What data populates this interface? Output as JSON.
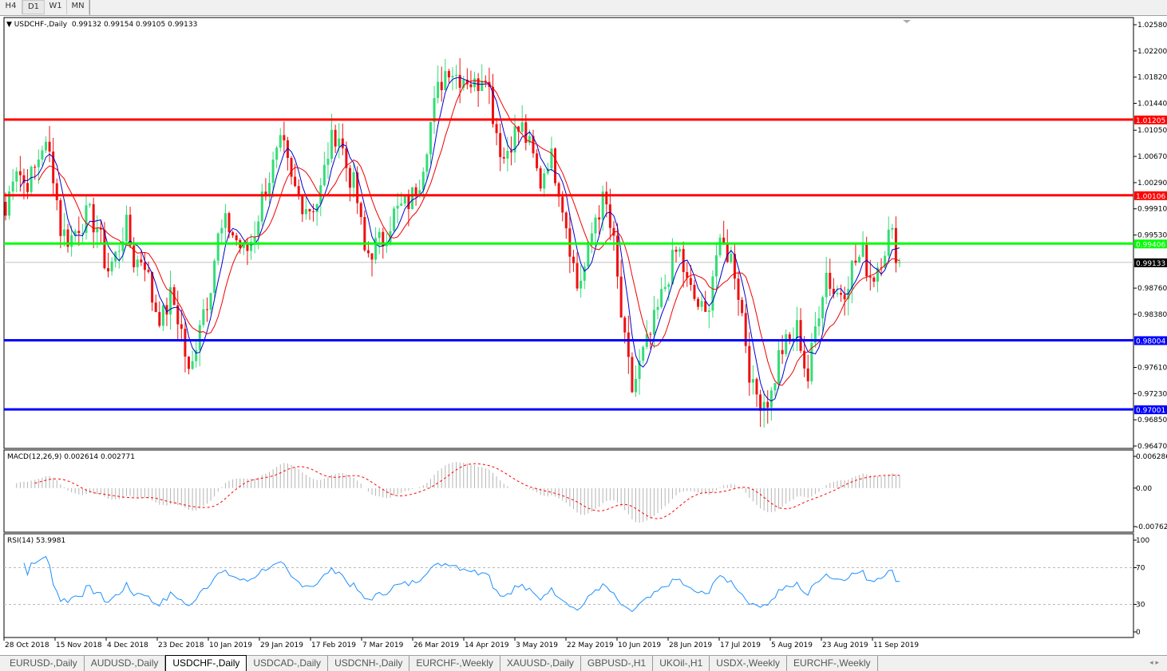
{
  "timeframes": [
    {
      "label": "H4"
    },
    {
      "label": "D1",
      "selected": true
    },
    {
      "label": "W1"
    },
    {
      "label": "MN"
    }
  ],
  "main": {
    "title": "USDCHF-,Daily",
    "ohlc": "0.99132 0.99154 0.99105 0.99133"
  },
  "macd": {
    "label": "MACD(12,26,9) 0.002614 0.002771",
    "axis": [
      "0.006286",
      "0.00",
      "-0.00762"
    ]
  },
  "rsi": {
    "label": "RSI(14) 53.9981",
    "axis": [
      "100",
      "70",
      "30",
      "0"
    ]
  },
  "tabs": [
    {
      "label": "EURUSD-,Daily"
    },
    {
      "label": "AUDUSD-,Daily"
    },
    {
      "label": "USDCHF-,Daily",
      "active": true
    },
    {
      "label": "USDCAD-,Daily"
    },
    {
      "label": "USDCNH-,Daily"
    },
    {
      "label": "EURCHF-,Weekly"
    },
    {
      "label": "XAUUSD-,Daily"
    },
    {
      "label": "GBPUSD-,H1"
    },
    {
      "label": "UKOil-,H1"
    },
    {
      "label": "USDX-,Weekly"
    },
    {
      "label": "EURCHF-,Weekly"
    }
  ],
  "tab_nav": "◂ ▸",
  "chart_data": {
    "type": "candlestick",
    "symbol": "USDCHF-,Daily",
    "ylim": [
      0.9647,
      1.0258
    ],
    "y_ticks": [
      "1.02580",
      "1.02200",
      "1.01820",
      "1.01440",
      "1.01050",
      "1.00670",
      "1.00290",
      "0.99910",
      "0.99530",
      "0.98760",
      "0.98380",
      "0.97610",
      "0.97230",
      "0.96850",
      "0.96470"
    ],
    "x_ticks": [
      "28 Oct 2018",
      "15 Nov 2018",
      "4 Dec 2018",
      "23 Dec 2018",
      "10 Jan 2019",
      "29 Jan 2019",
      "17 Feb 2019",
      "7 Mar 2019",
      "26 Mar 2019",
      "14 Apr 2019",
      "3 May 2019",
      "22 May 2019",
      "10 Jun 2019",
      "28 Jun 2019",
      "17 Jul 2019",
      "5 Aug 2019",
      "23 Aug 2019",
      "11 Sep 2019"
    ],
    "approx_closes": [
      0.99815,
      1.00625,
      1.00278,
      1.00393,
      1.00856,
      1.00625,
      0.99583,
      0.99468,
      0.99699,
      0.99815,
      0.99641,
      0.99005,
      0.99236,
      0.99699,
      0.9912,
      0.99236,
      0.98542,
      0.98311,
      0.98658,
      0.98195,
      0.97385,
      0.98311,
      0.98658,
      0.99468,
      0.99699,
      0.99468,
      0.99236,
      0.99583,
      1.00162,
      1.00509,
      1.00856,
      1.00278,
      1.00046,
      0.9993,
      1.00046,
      1.0074,
      1.01088,
      1.00509,
      1.00162,
      0.99236,
      0.99352,
      0.99468,
      0.99815,
      0.9993,
      1.00046,
      1.00393,
      1.01088,
      1.01666,
      1.02013,
      1.0184,
      1.0184,
      1.01666,
      1.02013,
      1.01203,
      1.00625,
      1.00972,
      1.01088,
      1.00741,
      1.00278,
      1.0074,
      1.00278,
      0.99583,
      0.98773,
      0.9912,
      0.99815,
      1.00046,
      0.99352,
      0.98079,
      0.97269,
      0.97732,
      0.98079,
      0.98542,
      0.99005,
      0.99352,
      0.98773,
      0.98542,
      0.98311,
      0.99236,
      0.99352,
      0.9912,
      0.98311,
      0.97269,
      0.97154,
      0.97154,
      0.97848,
      0.97964,
      0.98195,
      0.97385,
      0.98311,
      0.99005,
      0.98658,
      0.98773,
      0.9912,
      0.99236,
      0.98889,
      0.99236,
      0.99583,
      0.99133
    ],
    "levels": [
      {
        "value": 1.01205,
        "label": "1.01205",
        "color": "#ff0000"
      },
      {
        "value": 1.00106,
        "label": "1.00106",
        "color": "#ff0000"
      },
      {
        "value": 0.99406,
        "label": "0.99406",
        "color": "#00ff00"
      },
      {
        "value": 0.98004,
        "label": "0.98004",
        "color": "#0000ff"
      },
      {
        "value": 0.97001,
        "label": "0.97001",
        "color": "#0000ff"
      }
    ],
    "current_price": {
      "value": 0.99133,
      "label": "0.99133"
    },
    "colors": {
      "up": "#33dd77",
      "down": "#ee1111",
      "ma_fast": "#0000cc",
      "ma_slow": "#ee0000",
      "macd_hist": "#b4b4b4",
      "macd_signal": "#ff0000",
      "rsi": "#1e90ff"
    },
    "indicators": [
      "MA fast (blue)",
      "MA slow (red)",
      "MACD(12,26,9)",
      "RSI(14)"
    ]
  }
}
